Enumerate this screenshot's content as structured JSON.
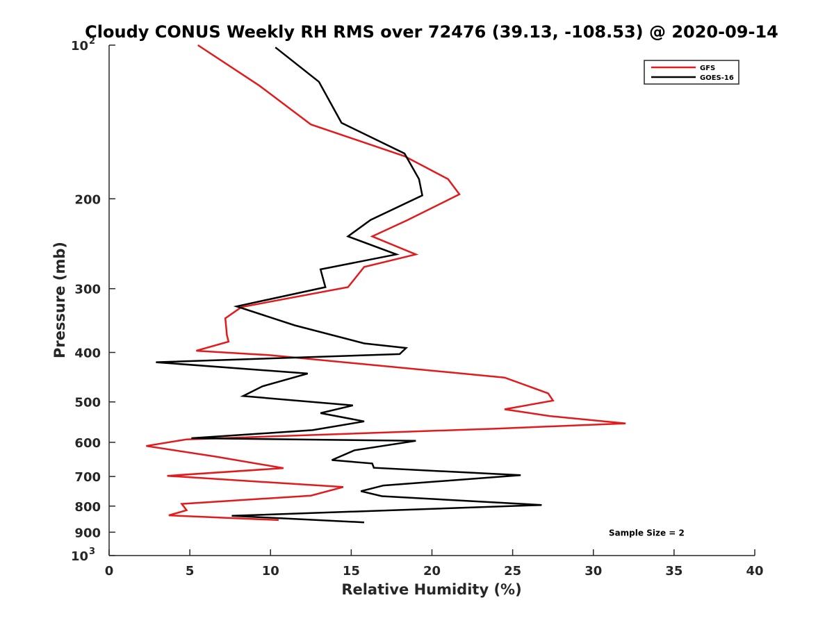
{
  "chart_data": {
    "type": "line",
    "title": "Cloudy CONUS Weekly RH RMS over 72476 (39.13, -108.53) @ 2020-09-14",
    "xlabel": "Relative Humidity (%)",
    "ylabel": "Pressure (mb)",
    "xlim": [
      0,
      40
    ],
    "ylim": [
      100,
      1000
    ],
    "yscale": "log",
    "y_reversed": true,
    "x_ticks": [
      "0",
      "5",
      "10",
      "15",
      "20",
      "25",
      "30",
      "35",
      "40"
    ],
    "y_ticks": [
      {
        "value": 100,
        "label": "10",
        "sup": "2"
      },
      {
        "value": 200,
        "label": "200",
        "sup": ""
      },
      {
        "value": 300,
        "label": "300",
        "sup": ""
      },
      {
        "value": 400,
        "label": "400",
        "sup": ""
      },
      {
        "value": 500,
        "label": "500",
        "sup": ""
      },
      {
        "value": 600,
        "label": "600",
        "sup": ""
      },
      {
        "value": 700,
        "label": "700",
        "sup": ""
      },
      {
        "value": 800,
        "label": "800",
        "sup": ""
      },
      {
        "value": 900,
        "label": "900",
        "sup": ""
      },
      {
        "value": 1000,
        "label": "10",
        "sup": "3"
      }
    ],
    "grid": false,
    "legend_position": "top-right",
    "series": [
      {
        "name": "GFS",
        "color": "#e31a1c",
        "x": [
          5.5,
          9.3,
          12.5,
          18.3,
          21.0,
          21.7,
          18.5,
          16.3,
          19.0,
          15.8,
          14.8,
          8.2,
          7.2,
          7.3,
          7.4,
          5.4,
          10.0,
          24.5,
          27.2,
          27.5,
          24.5,
          27.3,
          32.0,
          24.0,
          4.8,
          2.3,
          6.6,
          10.8,
          3.6,
          14.5,
          12.5,
          4.5,
          4.8,
          3.7,
          10.5
        ],
        "y": [
          100,
          120,
          143,
          165,
          183,
          196,
          220,
          237,
          257,
          272,
          298,
          326,
          343,
          370,
          381,
          397,
          405,
          448,
          481,
          497,
          517,
          533,
          551,
          564,
          592,
          610,
          640,
          674,
          698,
          734,
          763,
          792,
          815,
          834,
          852
        ]
      },
      {
        "name": "GOES-16",
        "color": "#000000",
        "x": [
          10.3,
          13.0,
          14.4,
          18.3,
          19.2,
          19.4,
          16.2,
          14.8,
          17.8,
          13.1,
          13.4,
          7.9,
          11.5,
          15.8,
          18.4,
          18.0,
          2.9,
          12.3,
          9.5,
          8.3,
          15.1,
          13.1,
          15.8,
          12.6,
          5.1,
          19.0,
          15.2,
          13.8,
          16.3,
          16.4,
          25.5,
          17.0,
          15.6,
          16.9,
          26.8,
          7.6,
          15.8
        ],
        "y": [
          101,
          118,
          142,
          163,
          183,
          197,
          220,
          237,
          257,
          275,
          298,
          325,
          354,
          384,
          392,
          403,
          418,
          440,
          466,
          487,
          508,
          526,
          546,
          568,
          589,
          596,
          622,
          650,
          660,
          673,
          696,
          729,
          748,
          765,
          796,
          836,
          861
        ]
      }
    ],
    "annotations": [
      {
        "text": "Sample Size = 2",
        "x": 33.3,
        "y": 900
      }
    ]
  }
}
